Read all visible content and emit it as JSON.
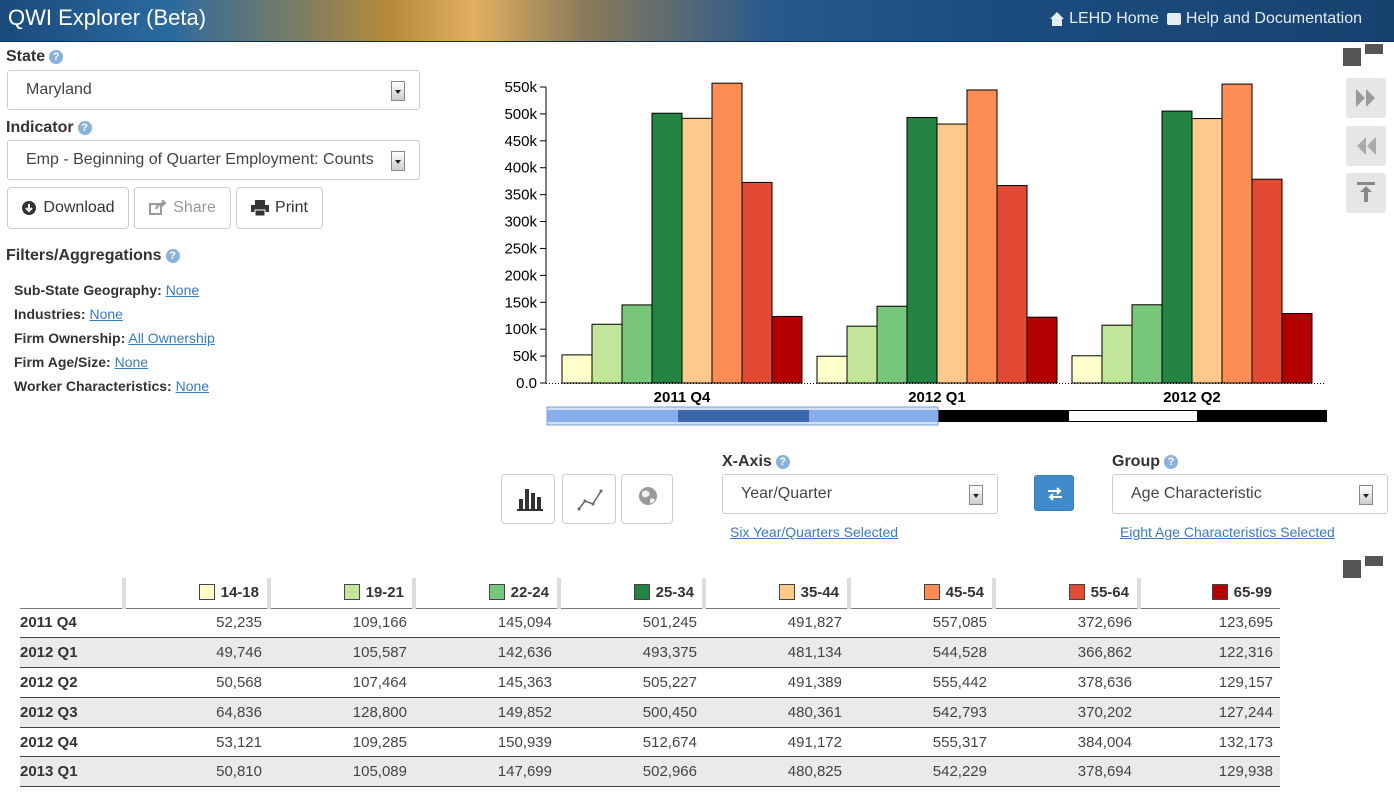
{
  "header": {
    "title": "QWI Explorer (Beta)",
    "lehd_home": "LEHD Home",
    "help_docs": "Help and Documentation"
  },
  "state": {
    "label": "State",
    "value": "Maryland"
  },
  "indicator": {
    "label": "Indicator",
    "value": "Emp - Beginning of Quarter Employment: Counts"
  },
  "buttons": {
    "download": "Download",
    "share": "Share",
    "print": "Print"
  },
  "filters": {
    "label": "Filters/Aggregations",
    "items": [
      {
        "label": "Sub-State Geography:",
        "value": "None"
      },
      {
        "label": "Industries:",
        "value": "None"
      },
      {
        "label": "Firm Ownership:",
        "value": "All Ownership"
      },
      {
        "label": "Firm Age/Size:",
        "value": "None"
      },
      {
        "label": "Worker Characteristics:",
        "value": "None"
      }
    ]
  },
  "controls": {
    "xaxis_label": "X-Axis",
    "xaxis_value": "Year/Quarter",
    "xaxis_link": "Six Year/Quarters Selected",
    "group_label": "Group",
    "group_value": "Age Characteristic",
    "group_link": "Eight Age Characteristics Selected"
  },
  "chart_data": {
    "type": "bar",
    "categories": [
      "2011 Q4",
      "2012 Q1",
      "2012 Q2"
    ],
    "ylim": [
      0,
      550000
    ],
    "yticks": [
      "0.0",
      "50k",
      "100k",
      "150k",
      "200k",
      "250k",
      "300k",
      "350k",
      "400k",
      "450k",
      "500k",
      "550k"
    ],
    "series": [
      {
        "name": "14-18",
        "color": "#ffffcc",
        "values": [
          52235,
          49746,
          50568
        ]
      },
      {
        "name": "19-21",
        "color": "#c2e699",
        "values": [
          109166,
          105587,
          107464
        ]
      },
      {
        "name": "22-24",
        "color": "#78c679",
        "values": [
          145094,
          142636,
          145363
        ]
      },
      {
        "name": "25-34",
        "color": "#238443",
        "values": [
          501245,
          493375,
          505227
        ]
      },
      {
        "name": "35-44",
        "color": "#fec98b",
        "values": [
          491827,
          481134,
          491389
        ]
      },
      {
        "name": "45-54",
        "color": "#fd8d55",
        "values": [
          557085,
          544528,
          555442
        ]
      },
      {
        "name": "55-64",
        "color": "#e34a33",
        "values": [
          372696,
          366862,
          378636
        ]
      },
      {
        "name": "65-99",
        "color": "#b30000",
        "values": [
          123695,
          122316,
          129157
        ]
      }
    ]
  },
  "table": {
    "columns": [
      "14-18",
      "19-21",
      "22-24",
      "25-34",
      "35-44",
      "45-54",
      "55-64",
      "65-99"
    ],
    "colors": [
      "#ffffcc",
      "#c2e699",
      "#78c679",
      "#238443",
      "#fec98b",
      "#fd8d55",
      "#e34a33",
      "#b30000"
    ],
    "rows": [
      {
        "label": "2011 Q4",
        "values": [
          "52,235",
          "109,166",
          "145,094",
          "501,245",
          "491,827",
          "557,085",
          "372,696",
          "123,695"
        ]
      },
      {
        "label": "2012 Q1",
        "values": [
          "49,746",
          "105,587",
          "142,636",
          "493,375",
          "481,134",
          "544,528",
          "366,862",
          "122,316"
        ]
      },
      {
        "label": "2012 Q2",
        "values": [
          "50,568",
          "107,464",
          "145,363",
          "505,227",
          "491,389",
          "555,442",
          "378,636",
          "129,157"
        ]
      },
      {
        "label": "2012 Q3",
        "values": [
          "64,836",
          "128,800",
          "149,852",
          "500,450",
          "480,361",
          "542,793",
          "370,202",
          "127,244"
        ]
      },
      {
        "label": "2012 Q4",
        "values": [
          "53,121",
          "109,285",
          "150,939",
          "512,674",
          "491,172",
          "555,317",
          "384,004",
          "132,173"
        ]
      },
      {
        "label": "2013 Q1",
        "values": [
          "50,810",
          "105,089",
          "147,699",
          "502,966",
          "480,825",
          "542,229",
          "378,694",
          "129,938"
        ]
      }
    ]
  }
}
